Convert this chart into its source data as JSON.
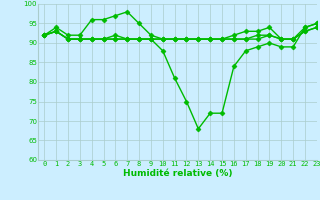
{
  "lines": [
    {
      "x": [
        0,
        1,
        2,
        3,
        4,
        5,
        6,
        7,
        8,
        9,
        10,
        11,
        12,
        13,
        14,
        15,
        16,
        17,
        18,
        19,
        20,
        21,
        22,
        23
      ],
      "y": [
        92,
        94,
        92,
        92,
        96,
        96,
        97,
        98,
        95,
        92,
        91,
        91,
        91,
        91,
        91,
        91,
        92,
        93,
        93,
        94,
        91,
        91,
        94,
        95
      ]
    },
    {
      "x": [
        0,
        1,
        2,
        3,
        4,
        5,
        6,
        7,
        8,
        9,
        10,
        11,
        12,
        13,
        14,
        15,
        16,
        17,
        18,
        19,
        20,
        21,
        22,
        23
      ],
      "y": [
        92,
        93,
        91,
        91,
        91,
        91,
        92,
        91,
        91,
        91,
        88,
        81,
        75,
        68,
        72,
        72,
        84,
        88,
        89,
        90,
        89,
        89,
        94,
        95
      ]
    },
    {
      "x": [
        0,
        1,
        2,
        3,
        4,
        5,
        6,
        7,
        8,
        9,
        10,
        11,
        12,
        13,
        14,
        15,
        16,
        17,
        18,
        19,
        20,
        21,
        22,
        23
      ],
      "y": [
        92,
        93,
        91,
        91,
        91,
        91,
        91,
        91,
        91,
        91,
        91,
        91,
        91,
        91,
        91,
        91,
        91,
        91,
        92,
        92,
        91,
        91,
        93,
        94
      ]
    },
    {
      "x": [
        0,
        1,
        2,
        3,
        4,
        5,
        6,
        7,
        8,
        9,
        10,
        11,
        12,
        13,
        14,
        15,
        16,
        17,
        18,
        19,
        20,
        21,
        22,
        23
      ],
      "y": [
        92,
        93,
        91,
        91,
        91,
        91,
        91,
        91,
        91,
        91,
        91,
        91,
        91,
        91,
        91,
        91,
        91,
        91,
        91,
        92,
        91,
        91,
        93,
        94
      ]
    }
  ],
  "xlabel": "Humidité relative (%)",
  "ylim": [
    60,
    100
  ],
  "xlim": [
    -0.5,
    23
  ],
  "yticks": [
    60,
    65,
    70,
    75,
    80,
    85,
    90,
    95,
    100
  ],
  "xticks": [
    0,
    1,
    2,
    3,
    4,
    5,
    6,
    7,
    8,
    9,
    10,
    11,
    12,
    13,
    14,
    15,
    16,
    17,
    18,
    19,
    20,
    21,
    22,
    23
  ],
  "bg_color": "#cceeff",
  "grid_color": "#aacccc",
  "line_color": "#00bb00",
  "marker": "D",
  "markersize": 2.5,
  "linewidth": 1.0,
  "xlabel_fontsize": 6.5,
  "tick_fontsize": 5.0
}
